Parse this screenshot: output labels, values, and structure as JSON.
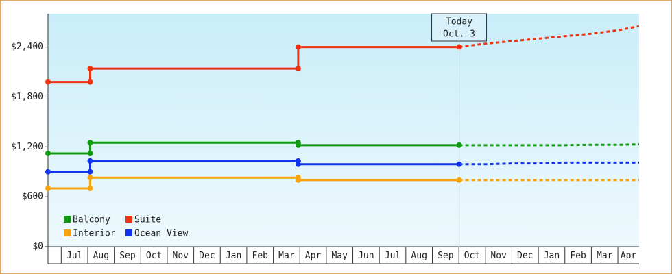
{
  "chart_data": {
    "type": "step-line",
    "x": [
      -0.5,
      1.09,
      1.09,
      8.94,
      8.94,
      15.01,
      16,
      17,
      18,
      19,
      20,
      21,
      21.8
    ],
    "xlim": [
      -0.5,
      21.8
    ],
    "xticks": [
      {
        "value": 0.5,
        "label": "Jul"
      },
      {
        "value": 1.5,
        "label": "Aug"
      },
      {
        "value": 2.5,
        "label": "Sep"
      },
      {
        "value": 3.5,
        "label": "Oct"
      },
      {
        "value": 4.5,
        "label": "Nov"
      },
      {
        "value": 5.5,
        "label": "Dec"
      },
      {
        "value": 6.5,
        "label": "Jan"
      },
      {
        "value": 7.5,
        "label": "Feb"
      },
      {
        "value": 8.5,
        "label": "Mar"
      },
      {
        "value": 9.5,
        "label": "Apr"
      },
      {
        "value": 10.5,
        "label": "May"
      },
      {
        "value": 11.5,
        "label": "Jun"
      },
      {
        "value": 12.5,
        "label": "Jul"
      },
      {
        "value": 13.5,
        "label": "Aug"
      },
      {
        "value": 14.5,
        "label": "Sep"
      },
      {
        "value": 15.5,
        "label": "Oct"
      },
      {
        "value": 16.5,
        "label": "Nov"
      },
      {
        "value": 17.5,
        "label": "Dec"
      },
      {
        "value": 18.5,
        "label": "Jan"
      },
      {
        "value": 19.5,
        "label": "Feb"
      },
      {
        "value": 20.5,
        "label": "Mar"
      },
      {
        "value": 21.4,
        "label": "Apr"
      }
    ],
    "ylim": [
      0,
      2800
    ],
    "yticks": [
      {
        "value": 0,
        "label": "$0"
      },
      {
        "value": 600,
        "label": "$600"
      },
      {
        "value": 1200,
        "label": "$1,200"
      },
      {
        "value": 1800,
        "label": "$1,800"
      },
      {
        "value": 2400,
        "label": "$2,400"
      }
    ],
    "today": {
      "x": 15.01,
      "label": "Today",
      "date": "Oct. 3"
    },
    "series": [
      {
        "name": "Balcony",
        "color": "#119911",
        "values": [
          1120,
          1120,
          1250,
          1250,
          1220,
          1220,
          1220,
          1220,
          1220,
          1220,
          1225,
          1225,
          1230
        ]
      },
      {
        "name": "Suite",
        "color": "#ee3311",
        "values": [
          1980,
          1980,
          2140,
          2140,
          2400,
          2400,
          2440,
          2470,
          2500,
          2530,
          2560,
          2600,
          2650
        ]
      },
      {
        "name": "Interior",
        "color": "#f5a410",
        "values": [
          700,
          700,
          830,
          830,
          800,
          800,
          800,
          800,
          800,
          800,
          800,
          800,
          800
        ]
      },
      {
        "name": "Ocean View",
        "color": "#1133ee",
        "values": [
          900,
          900,
          1030,
          1030,
          990,
          990,
          990,
          1000,
          1000,
          1010,
          1010,
          1010,
          1010
        ]
      }
    ]
  }
}
